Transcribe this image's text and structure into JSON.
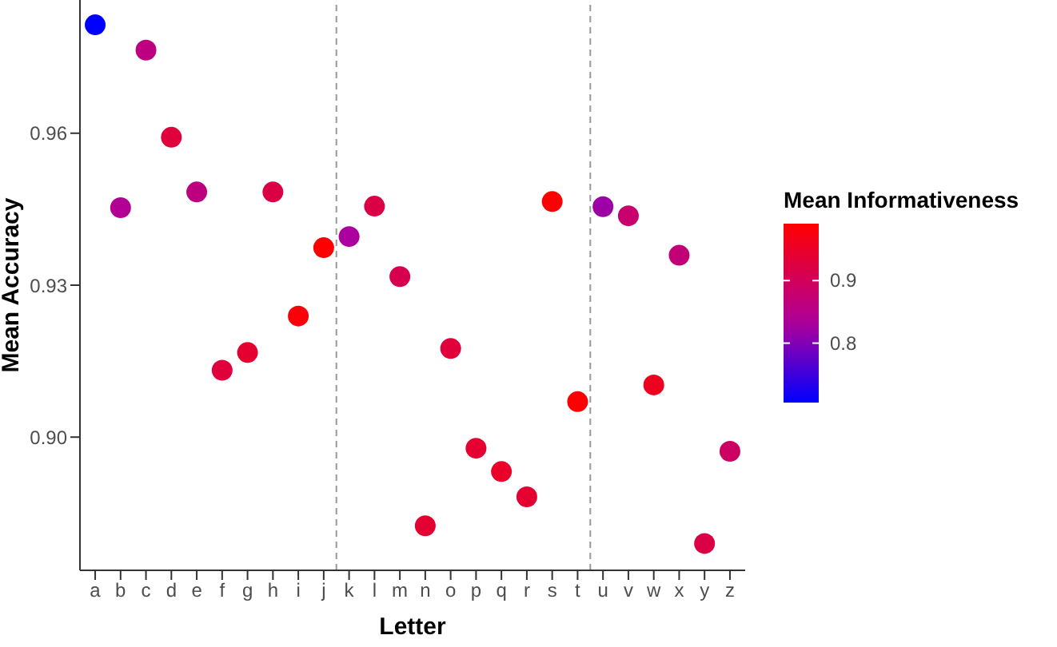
{
  "chart_data": {
    "type": "scatter",
    "xlabel": "Letter",
    "ylabel": "Mean Accuracy",
    "clabel": "Mean Informativeness",
    "categories": [
      "a",
      "b",
      "c",
      "d",
      "e",
      "f",
      "g",
      "h",
      "i",
      "j",
      "k",
      "l",
      "m",
      "n",
      "o",
      "p",
      "q",
      "r",
      "s",
      "t",
      "u",
      "v",
      "w",
      "x",
      "y",
      "z"
    ],
    "values": [
      0.9814,
      0.9453,
      0.9764,
      0.9592,
      0.9484,
      0.9132,
      0.9167,
      0.9484,
      0.9239,
      0.9374,
      0.9396,
      0.9456,
      0.9317,
      0.8825,
      0.9175,
      0.8978,
      0.8932,
      0.8882,
      0.9465,
      0.907,
      0.9455,
      0.9437,
      0.9103,
      0.9359,
      0.879,
      0.8972
    ],
    "cvalues": [
      0.705,
      0.84,
      0.86,
      0.93,
      0.86,
      0.93,
      0.94,
      0.92,
      0.98,
      0.99,
      0.83,
      0.92,
      0.91,
      0.94,
      0.93,
      0.94,
      0.95,
      0.94,
      0.99,
      0.99,
      0.82,
      0.88,
      0.96,
      0.87,
      0.92,
      0.89
    ],
    "clim": [
      0.705,
      0.991
    ],
    "cticks": [
      0.8,
      0.9
    ],
    "ylim": [
      0.8737,
      0.9863
    ],
    "yticks": [
      {
        "value": 0.9,
        "label": "0.90"
      },
      {
        "value": 0.93,
        "label": "0.93"
      },
      {
        "value": 0.96,
        "label": "0.96"
      }
    ],
    "marker": "circle"
  }
}
